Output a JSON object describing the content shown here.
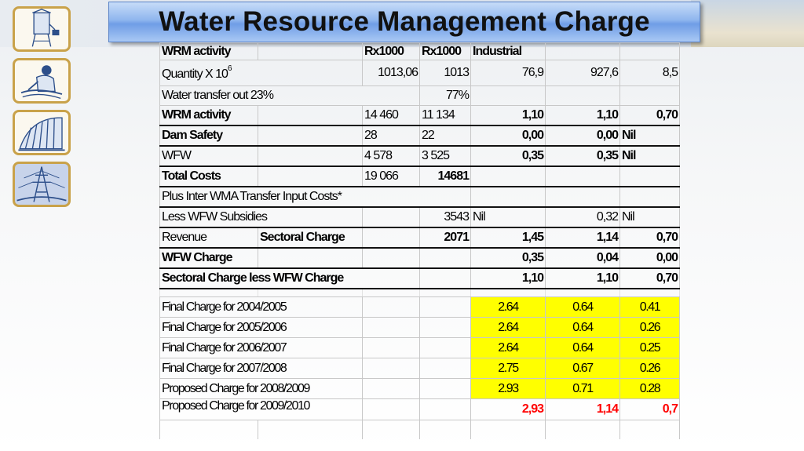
{
  "title": "Water Resource Management Charge",
  "icons": [
    "water-tower-icon",
    "farmer-icon",
    "dam-wall-icon",
    "power-pylon-icon"
  ],
  "table": {
    "header": {
      "c0": "WRM activity",
      "c1": "",
      "c2": "Rx1000",
      "c3": "Rx1000",
      "c4": "Industrial",
      "c5": "",
      "c6": ""
    },
    "quantity": {
      "label": "Quantity   X 10",
      "exp": "6",
      "c2": "1013,06",
      "c3": "1013",
      "c4": "76,9",
      "c5": "927,6",
      "c6": "8,5"
    },
    "transfer": {
      "label": "Water transfer out  23%",
      "c3": "77%"
    },
    "wrm": {
      "label": "WRM activity",
      "c2": "14 460",
      "c3": "11 134",
      "c4": "1,10",
      "c5": "1,10",
      "c6": "0,70"
    },
    "dam": {
      "label": "Dam Safety",
      "c2": "28",
      "c3": "22",
      "c4": "0,00",
      "c5": "0,00",
      "c6": "Nil"
    },
    "wfw": {
      "label": "WFW",
      "c2": "4 578",
      "c3": "3 525",
      "c4": "0,35",
      "c5": "0,35",
      "c6": "Nil"
    },
    "total": {
      "label": "Total Costs",
      "c2": "19 066",
      "c3": "14681"
    },
    "plus": {
      "label": "Plus Inter WMA Transfer Input Costs*"
    },
    "less": {
      "label": "Less WFW Subsidies",
      "c3": "3543",
      "c4": "Nil",
      "c5": "0,32",
      "c6": "Nil"
    },
    "revenue": {
      "label": "Revenue",
      "c1": "Sectoral Charge",
      "c3": "2071",
      "c4": "1,45",
      "c5": "1,14",
      "c6": "0,70"
    },
    "wfwcharge": {
      "label": "WFW Charge",
      "c4": "0,35",
      "c5": "0,04",
      "c6": "0,00"
    },
    "sectoral": {
      "label": "Sectoral Charge less WFW Charge",
      "c4": "1,10",
      "c5": "1,10",
      "c6": "0,70"
    },
    "final": [
      {
        "label": "Final Charge for 2004/2005",
        "c4": "2.64",
        "c5": "0.64",
        "c6": "0.41"
      },
      {
        "label": "Final Charge for 2005/2006",
        "c4": "2.64",
        "c5": "0.64",
        "c6": "0.26"
      },
      {
        "label": "Final Charge for 2006/2007",
        "c4": "2.64",
        "c5": "0.64",
        "c6": "0.25"
      },
      {
        "label": "Final Charge for 2007/2008",
        "c4": "2.75",
        "c5": "0.67",
        "c6": "0.26"
      },
      {
        "label": "Proposed Charge for 2008/2009",
        "c4": "2.93",
        "c5": "0.71",
        "c6": "0.28"
      }
    ],
    "proposed": {
      "label": "Proposed Charge for 2009/2010",
      "c4": "2,93",
      "c5": "1,14",
      "c6": "0,7"
    }
  },
  "colors": {
    "highlight": "#ffff00",
    "proposed_text": "#ff0000",
    "title_bar": "#8fb6ee",
    "icon_border": "#c9a24a"
  }
}
